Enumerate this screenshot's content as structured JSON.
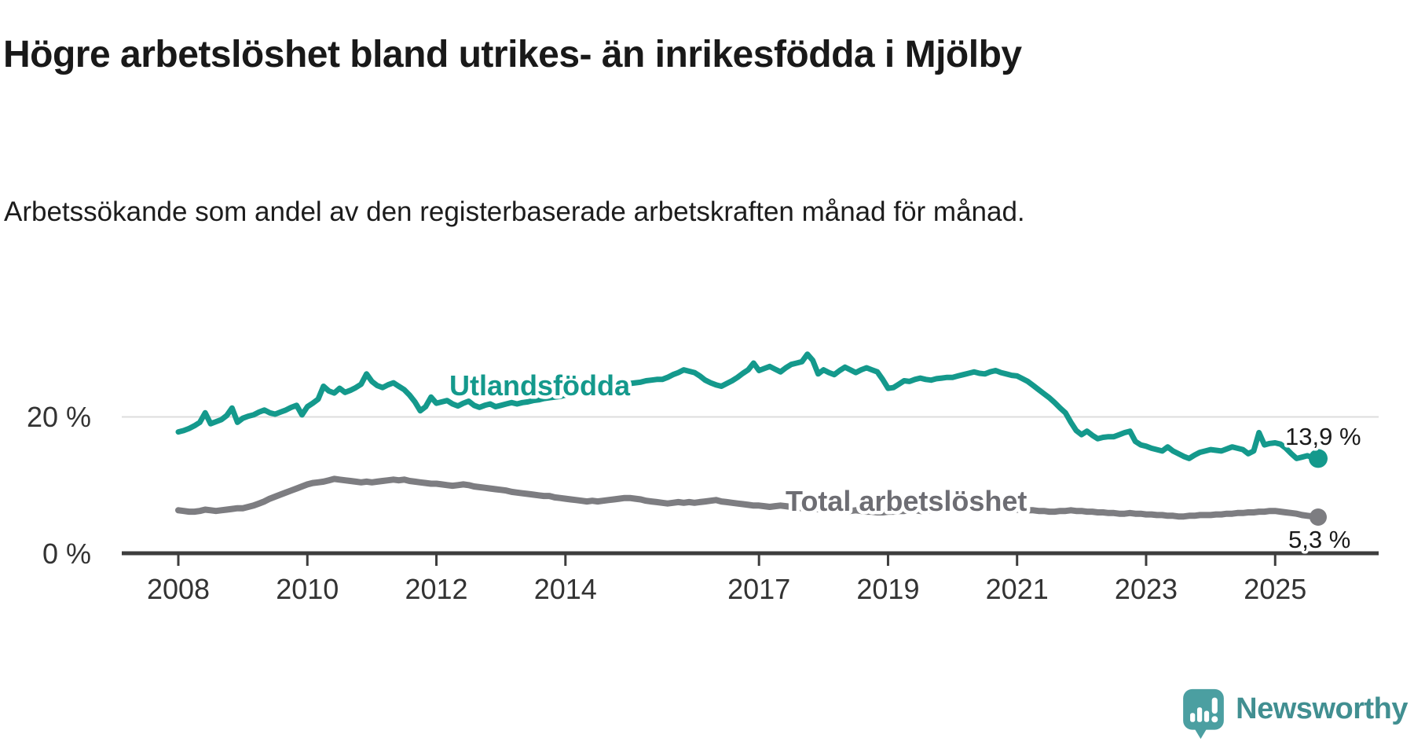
{
  "header": {
    "title": "Högre arbetslöshet bland utrikes- än inrikesfödda i Mjölby",
    "subtitle": "Arbetssökande som andel av den registerbaserade arbetskraften månad för månad."
  },
  "colors": {
    "foreign_born_line": "#14998c",
    "total_line": "#7d7d81",
    "total_label": "#6d6d73",
    "axis": "#3d3d3d",
    "gridline": "#dcdcdc",
    "tick_text": "#333333",
    "value_text": "#1a1a1a",
    "brand_teal": "#4b9fa1",
    "brand_text": "#418f91"
  },
  "chart_data": {
    "type": "line",
    "title": "Högre arbetslöshet bland utrikes- än inrikesfödda i Mjölby",
    "subtitle": "Arbetssökande som andel av den registerbaserade arbetskraften månad för månad.",
    "frequency": "monthly",
    "x_start": "2008-01",
    "x_end": "2025-09",
    "x_tick_years": [
      2008,
      2010,
      2012,
      2014,
      2017,
      2019,
      2021,
      2023,
      2025
    ],
    "y_ticks": [
      {
        "value": 0,
        "label": "0 %"
      },
      {
        "value": 20,
        "label": "20 %"
      }
    ],
    "ylim": [
      0,
      37
    ],
    "grid": "horizontal line at 20% only",
    "legend_position": "inline labels on lines, end values at right",
    "series": [
      {
        "name": "Utlandsfödda",
        "color": "#14998c",
        "end_value": 13.9,
        "end_label": "13,9 %",
        "values": [
          17.8,
          18.0,
          18.3,
          18.7,
          19.2,
          20.6,
          19.0,
          19.3,
          19.6,
          20.2,
          21.3,
          19.2,
          19.8,
          20.1,
          20.3,
          20.7,
          21.0,
          20.6,
          20.4,
          20.7,
          21.0,
          21.4,
          21.7,
          20.3,
          21.5,
          22.0,
          22.6,
          24.5,
          23.8,
          23.5,
          24.2,
          23.6,
          23.9,
          24.3,
          24.8,
          26.3,
          25.2,
          24.6,
          24.3,
          24.7,
          25.0,
          24.5,
          24.0,
          23.2,
          22.2,
          20.9,
          21.5,
          22.9,
          22.0,
          22.2,
          22.4,
          21.9,
          21.6,
          22.0,
          22.3,
          21.7,
          21.4,
          21.7,
          21.9,
          21.5,
          21.7,
          21.9,
          22.1,
          21.9,
          22.1,
          22.2,
          22.4,
          22.5,
          22.7,
          22.8,
          22.9,
          23.0,
          23.2,
          23.3,
          23.5,
          23.6,
          23.8,
          24.0,
          24.1,
          24.2,
          24.4,
          24.5,
          24.6,
          24.8,
          24.9,
          25.0,
          25.1,
          25.3,
          25.4,
          25.5,
          25.5,
          25.8,
          26.2,
          26.5,
          26.9,
          26.7,
          26.5,
          26.0,
          25.4,
          25.0,
          24.7,
          24.5,
          24.9,
          25.3,
          25.8,
          26.4,
          26.9,
          27.9,
          26.8,
          27.1,
          27.4,
          27.0,
          26.6,
          27.2,
          27.7,
          27.9,
          28.1,
          29.2,
          28.3,
          26.3,
          26.9,
          26.5,
          26.2,
          26.8,
          27.3,
          26.9,
          26.5,
          26.9,
          27.2,
          26.9,
          26.6,
          25.5,
          24.2,
          24.3,
          24.8,
          25.3,
          25.2,
          25.5,
          25.7,
          25.5,
          25.4,
          25.6,
          25.7,
          25.8,
          25.8,
          26.0,
          26.2,
          26.4,
          26.6,
          26.4,
          26.3,
          26.6,
          26.8,
          26.5,
          26.3,
          26.1,
          26.0,
          25.6,
          25.2,
          24.6,
          24.0,
          23.4,
          22.8,
          22.1,
          21.3,
          20.6,
          19.2,
          18.0,
          17.4,
          17.9,
          17.3,
          16.8,
          17.0,
          17.1,
          17.1,
          17.4,
          17.7,
          17.9,
          16.4,
          15.9,
          15.7,
          15.4,
          15.2,
          15.0,
          15.6,
          15.0,
          14.6,
          14.2,
          13.9,
          14.4,
          14.8,
          15.0,
          15.2,
          15.1,
          15.0,
          15.3,
          15.6,
          15.4,
          15.2,
          14.6,
          15.0,
          17.7,
          15.9,
          16.1,
          16.2,
          16.0,
          15.4,
          14.6,
          13.9,
          14.1,
          14.3,
          14.0,
          13.9
        ]
      },
      {
        "name": "Total arbetslöshet",
        "color": "#7d7d81",
        "end_value": 5.3,
        "end_label": "5,3 %",
        "values": [
          6.3,
          6.2,
          6.1,
          6.1,
          6.2,
          6.4,
          6.3,
          6.2,
          6.3,
          6.4,
          6.5,
          6.6,
          6.6,
          6.8,
          7.0,
          7.3,
          7.6,
          8.0,
          8.3,
          8.6,
          8.9,
          9.2,
          9.5,
          9.8,
          10.1,
          10.3,
          10.4,
          10.5,
          10.7,
          10.9,
          10.8,
          10.7,
          10.6,
          10.5,
          10.4,
          10.5,
          10.4,
          10.5,
          10.6,
          10.7,
          10.8,
          10.7,
          10.8,
          10.6,
          10.5,
          10.4,
          10.3,
          10.2,
          10.2,
          10.1,
          10.0,
          9.9,
          10.0,
          10.1,
          10.0,
          9.8,
          9.7,
          9.6,
          9.5,
          9.4,
          9.3,
          9.2,
          9.0,
          8.9,
          8.8,
          8.7,
          8.6,
          8.5,
          8.4,
          8.4,
          8.2,
          8.1,
          8.0,
          7.9,
          7.8,
          7.7,
          7.6,
          7.7,
          7.6,
          7.7,
          7.8,
          7.9,
          8.0,
          8.1,
          8.1,
          8.0,
          7.9,
          7.7,
          7.6,
          7.5,
          7.4,
          7.3,
          7.4,
          7.5,
          7.4,
          7.5,
          7.4,
          7.5,
          7.6,
          7.7,
          7.8,
          7.6,
          7.5,
          7.4,
          7.3,
          7.2,
          7.1,
          7.0,
          7.0,
          6.9,
          6.8,
          6.9,
          7.0,
          6.9,
          6.8,
          6.7,
          6.6,
          6.5,
          6.4,
          6.5,
          6.4,
          6.4,
          6.3,
          6.3,
          6.2,
          6.2,
          6.3,
          6.2,
          6.1,
          6.1,
          6.0,
          6.0,
          6.1,
          6.1,
          6.2,
          6.2,
          6.3,
          6.3,
          6.2,
          6.2,
          6.3,
          6.3,
          6.4,
          6.4,
          6.5,
          6.5,
          6.6,
          6.7,
          6.8,
          6.8,
          6.7,
          6.7,
          6.6,
          6.6,
          6.5,
          6.5,
          6.4,
          6.4,
          6.3,
          6.3,
          6.2,
          6.2,
          6.1,
          6.1,
          6.2,
          6.2,
          6.3,
          6.2,
          6.2,
          6.1,
          6.1,
          6.0,
          6.0,
          5.9,
          5.9,
          5.8,
          5.8,
          5.9,
          5.8,
          5.8,
          5.7,
          5.7,
          5.6,
          5.6,
          5.5,
          5.5,
          5.4,
          5.4,
          5.5,
          5.5,
          5.6,
          5.6,
          5.6,
          5.7,
          5.7,
          5.8,
          5.8,
          5.9,
          5.9,
          6.0,
          6.0,
          6.1,
          6.1,
          6.2,
          6.2,
          6.1,
          6.0,
          5.9,
          5.8,
          5.6,
          5.5,
          5.4,
          5.3
        ]
      }
    ]
  },
  "footer": {
    "brand": "Newsworthy",
    "brand_icon": "speech-bubble-bar-chart-exclamation"
  }
}
